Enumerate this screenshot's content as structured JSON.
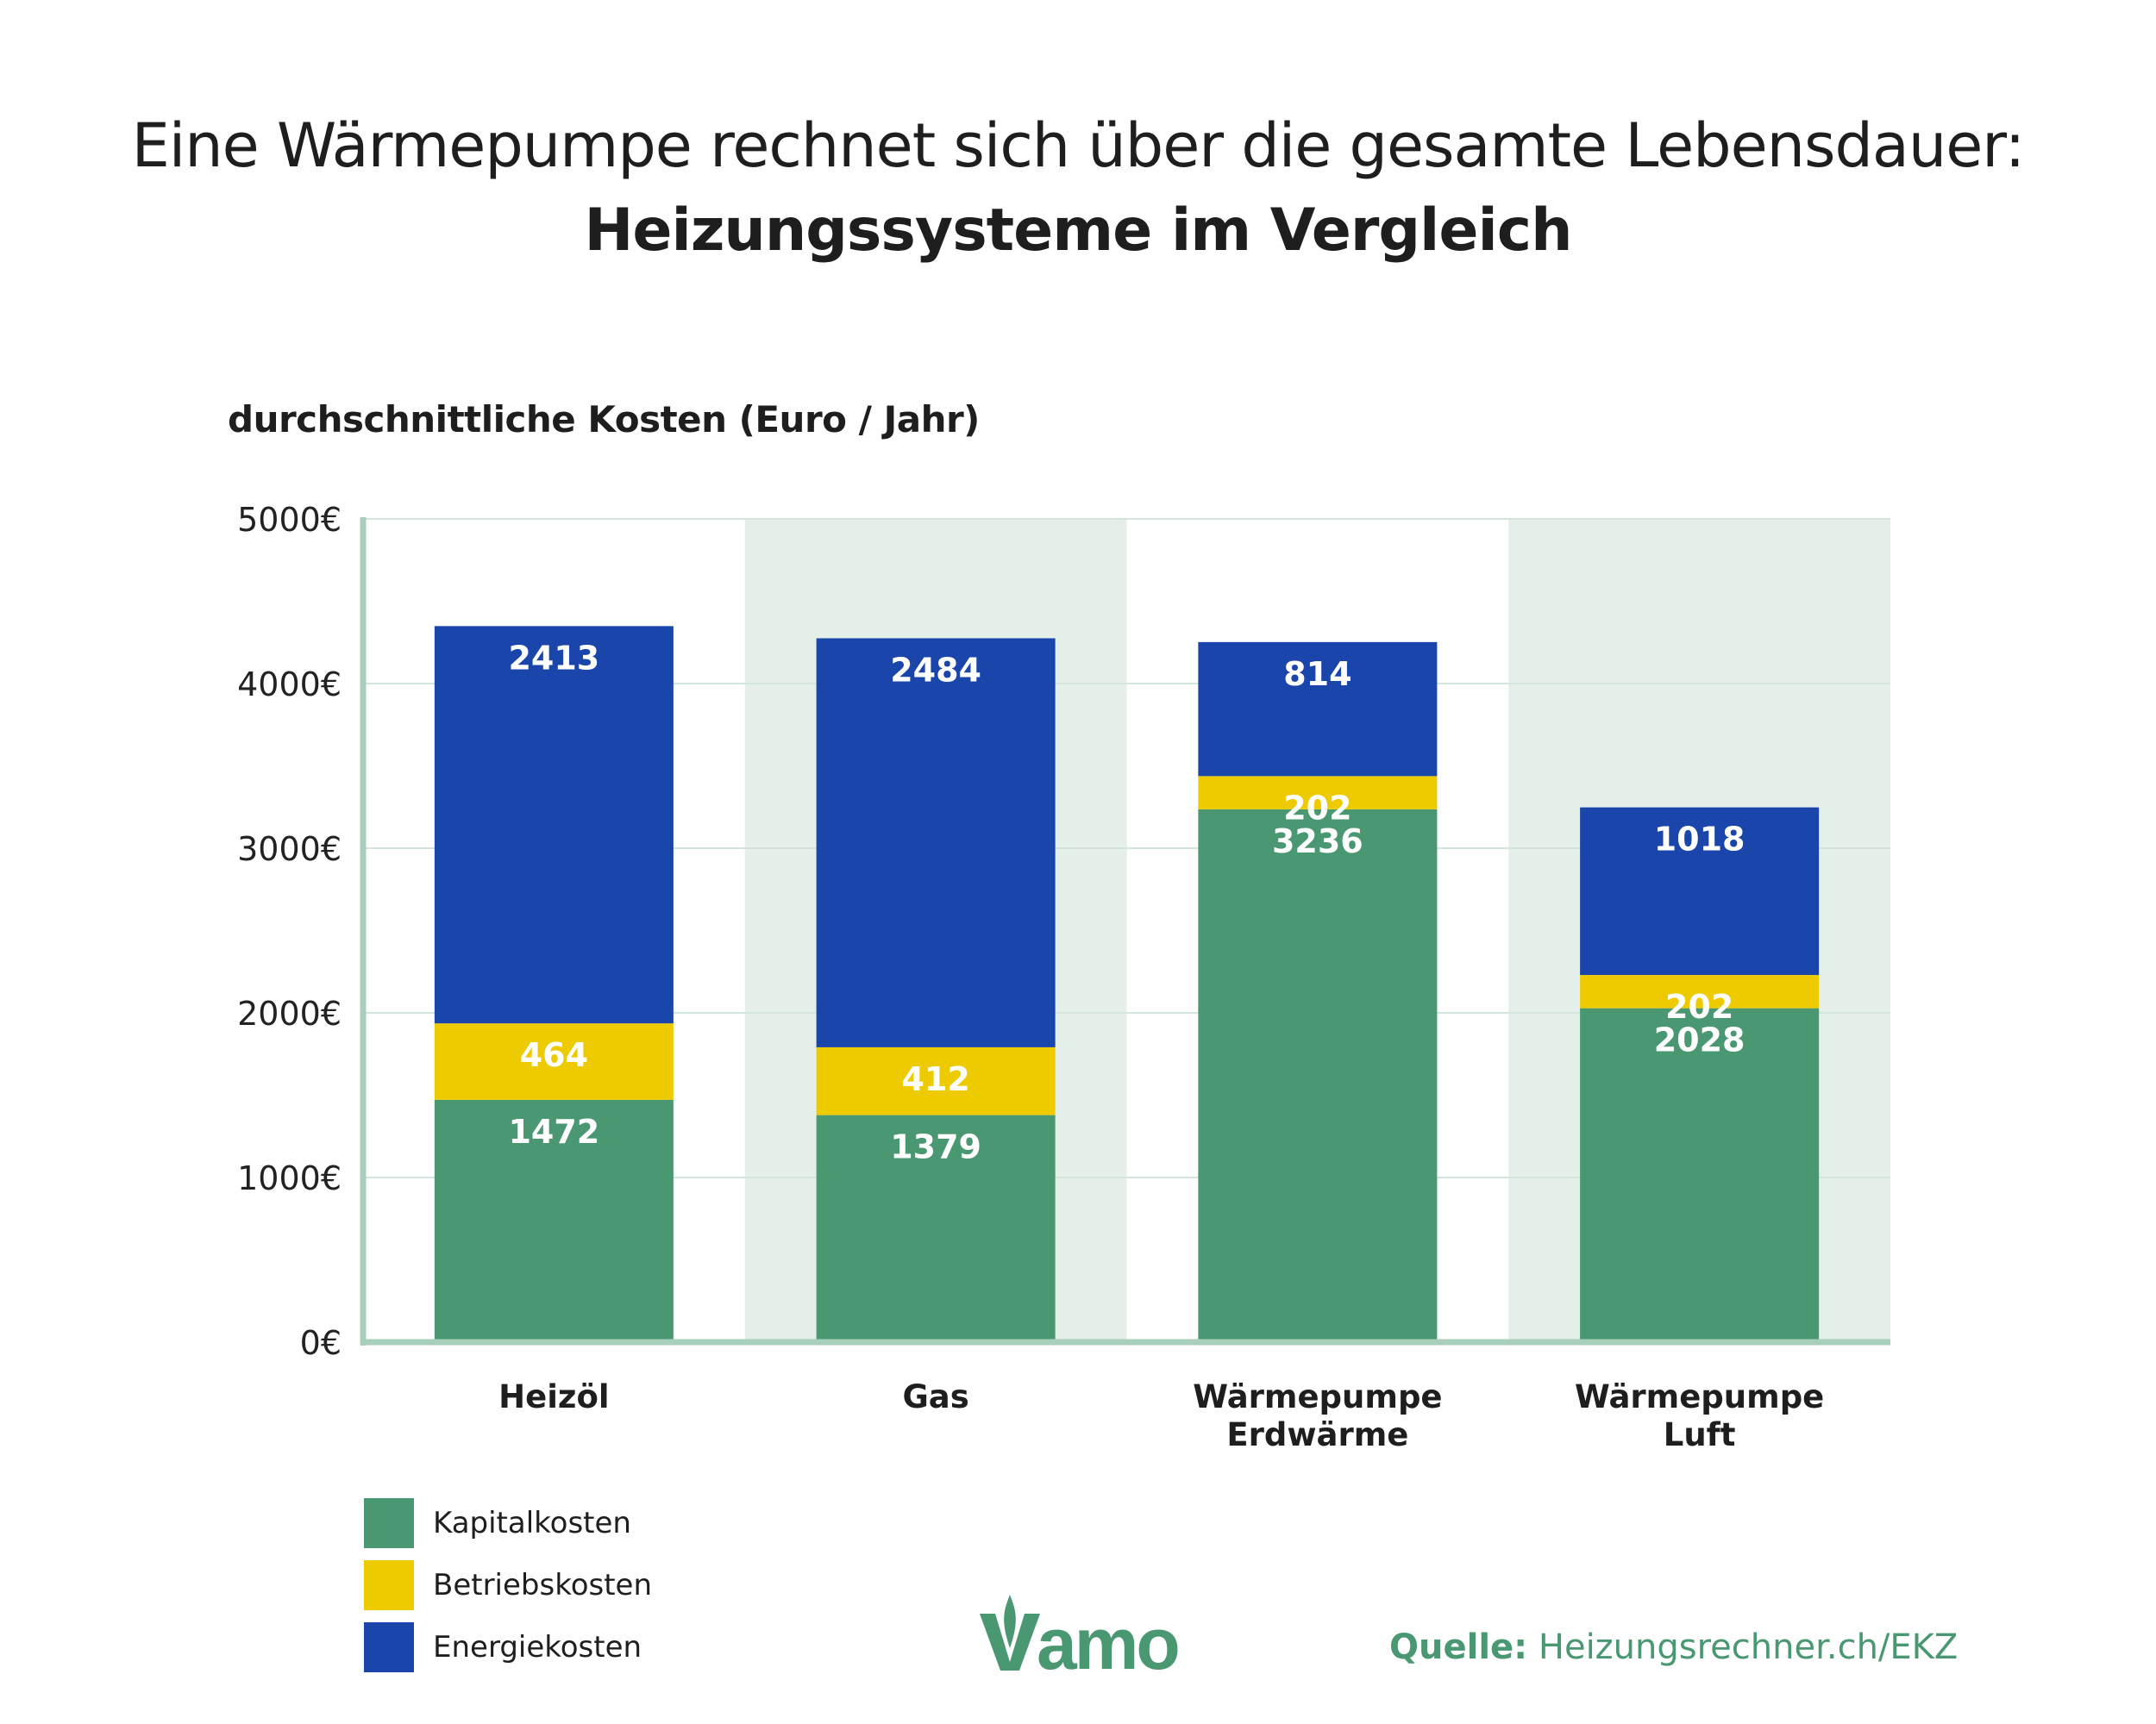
{
  "title_line1": "Eine Wärmepumpe rechnet sich über die gesamte Lebensdauer:",
  "title_line2": "Heizungssysteme im Vergleich",
  "logo_text": "Vamo",
  "source": {
    "label": "Quelle:",
    "text": "Heizungsrechner.ch/EKZ"
  },
  "colors": {
    "Kapitalkosten": "#4a9872",
    "Betriebskosten": "#eecb00",
    "Energiekosten": "#1a45aa",
    "band": "#e4efe9",
    "axis": "#a8cfbb",
    "grid": "#d2e6db"
  },
  "chart_data": {
    "type": "bar",
    "stacked": true,
    "ylabel": "durchschnittliche Kosten (Euro / Jahr)",
    "ylim": [
      0,
      5000
    ],
    "yticks": [
      "0€",
      "1000€",
      "2000€",
      "3000€",
      "4000€",
      "5000€"
    ],
    "grid": true,
    "legend_position": "bottom-left",
    "categories": [
      [
        "Heizöl"
      ],
      [
        "Gas"
      ],
      [
        "Wärmepumpe",
        "Erdwärme"
      ],
      [
        "Wärmepumpe",
        "Luft"
      ]
    ],
    "series": [
      {
        "name": "Kapitalkosten",
        "values": [
          1472,
          1379,
          3236,
          2028
        ]
      },
      {
        "name": "Betriebskosten",
        "values": [
          464,
          412,
          202,
          202
        ]
      },
      {
        "name": "Energiekosten",
        "values": [
          2413,
          2484,
          814,
          1018
        ]
      }
    ]
  }
}
